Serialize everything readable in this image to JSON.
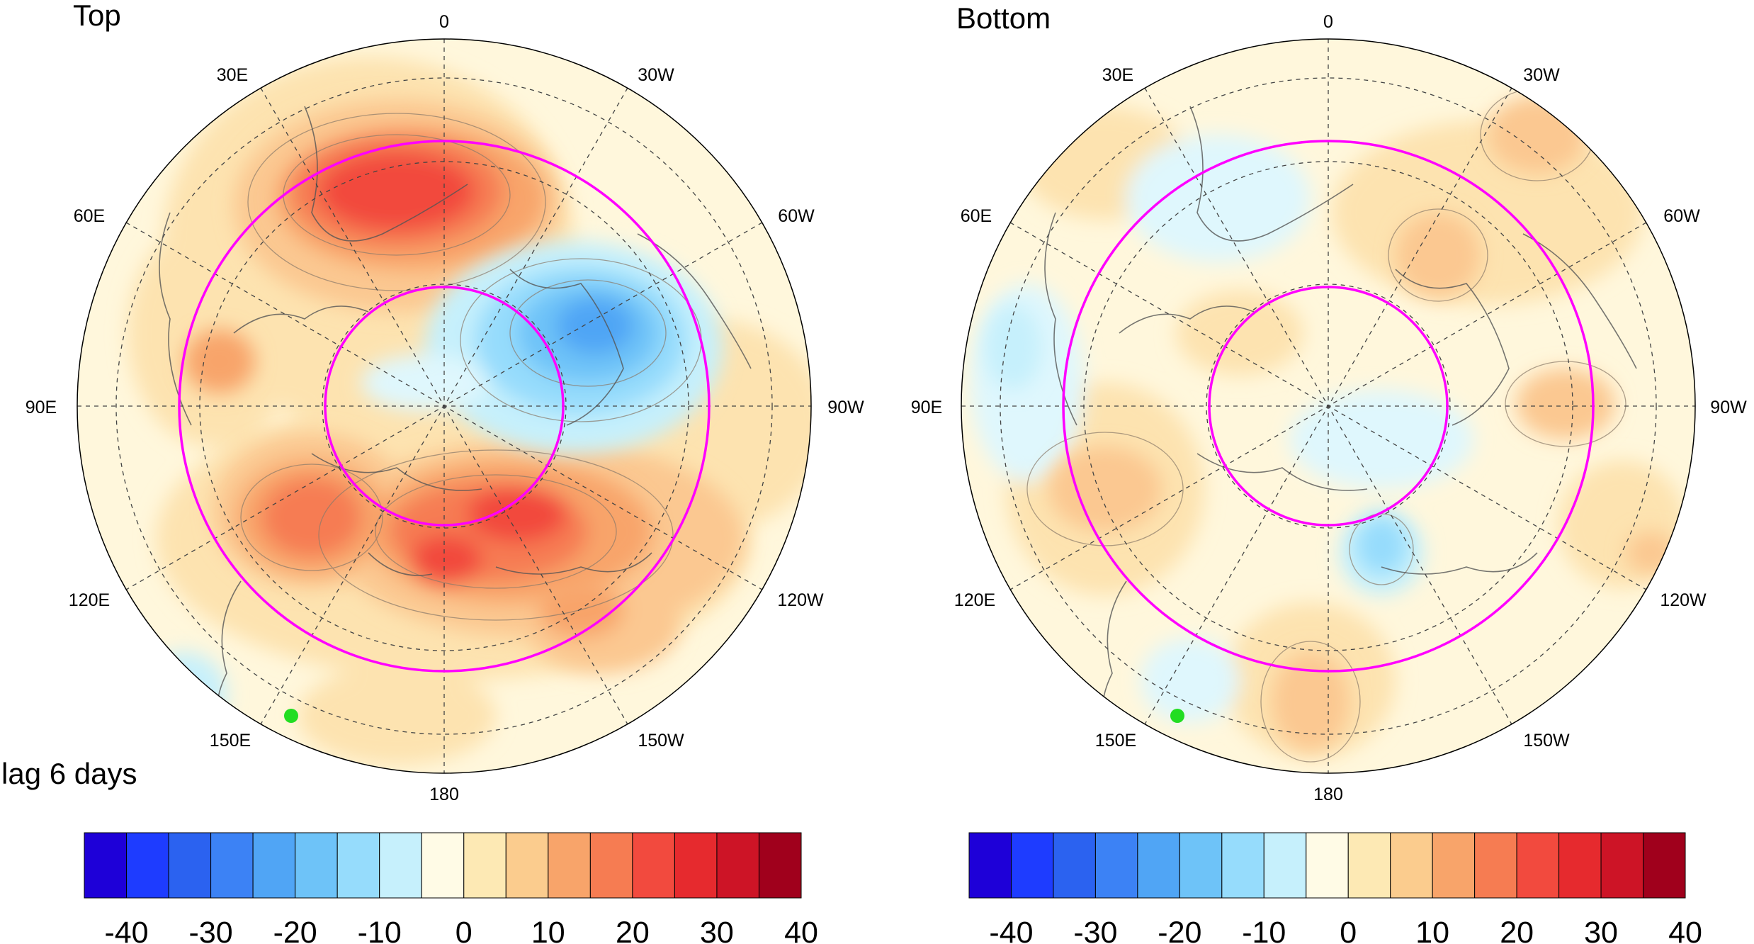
{
  "panels": [
    {
      "title": "Top",
      "lon_labels": {
        "top": "0",
        "upper_left": "30E",
        "upper_right": "30W",
        "left_upper": "60E",
        "right_upper": "60W",
        "left": "90E",
        "right": "90W",
        "left_lower": "120E",
        "right_lower": "120W",
        "lower_left": "150E",
        "lower_right": "150W",
        "bottom": "180"
      }
    },
    {
      "title": "Bottom",
      "lon_labels": {
        "top": "0",
        "upper_left": "30E",
        "upper_right": "30W",
        "left_upper": "60E",
        "right_upper": "60W",
        "left": "90E",
        "right": "90W",
        "left_lower": "120E",
        "right_lower": "120W",
        "lower_left": "150E",
        "lower_right": "150W",
        "bottom": "180"
      }
    }
  ],
  "lag_label": "lag 6 days",
  "colorbar": {
    "tick_labels": [
      "-40",
      "-30",
      "-20",
      "-10",
      "0",
      "10",
      "20",
      "30",
      "40"
    ],
    "colors": [
      "#1e00d8",
      "#1e3cff",
      "#2b62f0",
      "#3c82f5",
      "#50a5f5",
      "#6ec3f8",
      "#96dcfc",
      "#c6f0fc",
      "#fffbe6",
      "#fde9b4",
      "#fbcc8e",
      "#f8a46a",
      "#f67c52",
      "#f24a3e",
      "#e62a2e",
      "#cd1426",
      "#a0001c"
    ]
  },
  "colors": {
    "circle": "#ff00ff",
    "marker": "#22dd22",
    "coast": "#555555",
    "grid": "#444444"
  }
}
